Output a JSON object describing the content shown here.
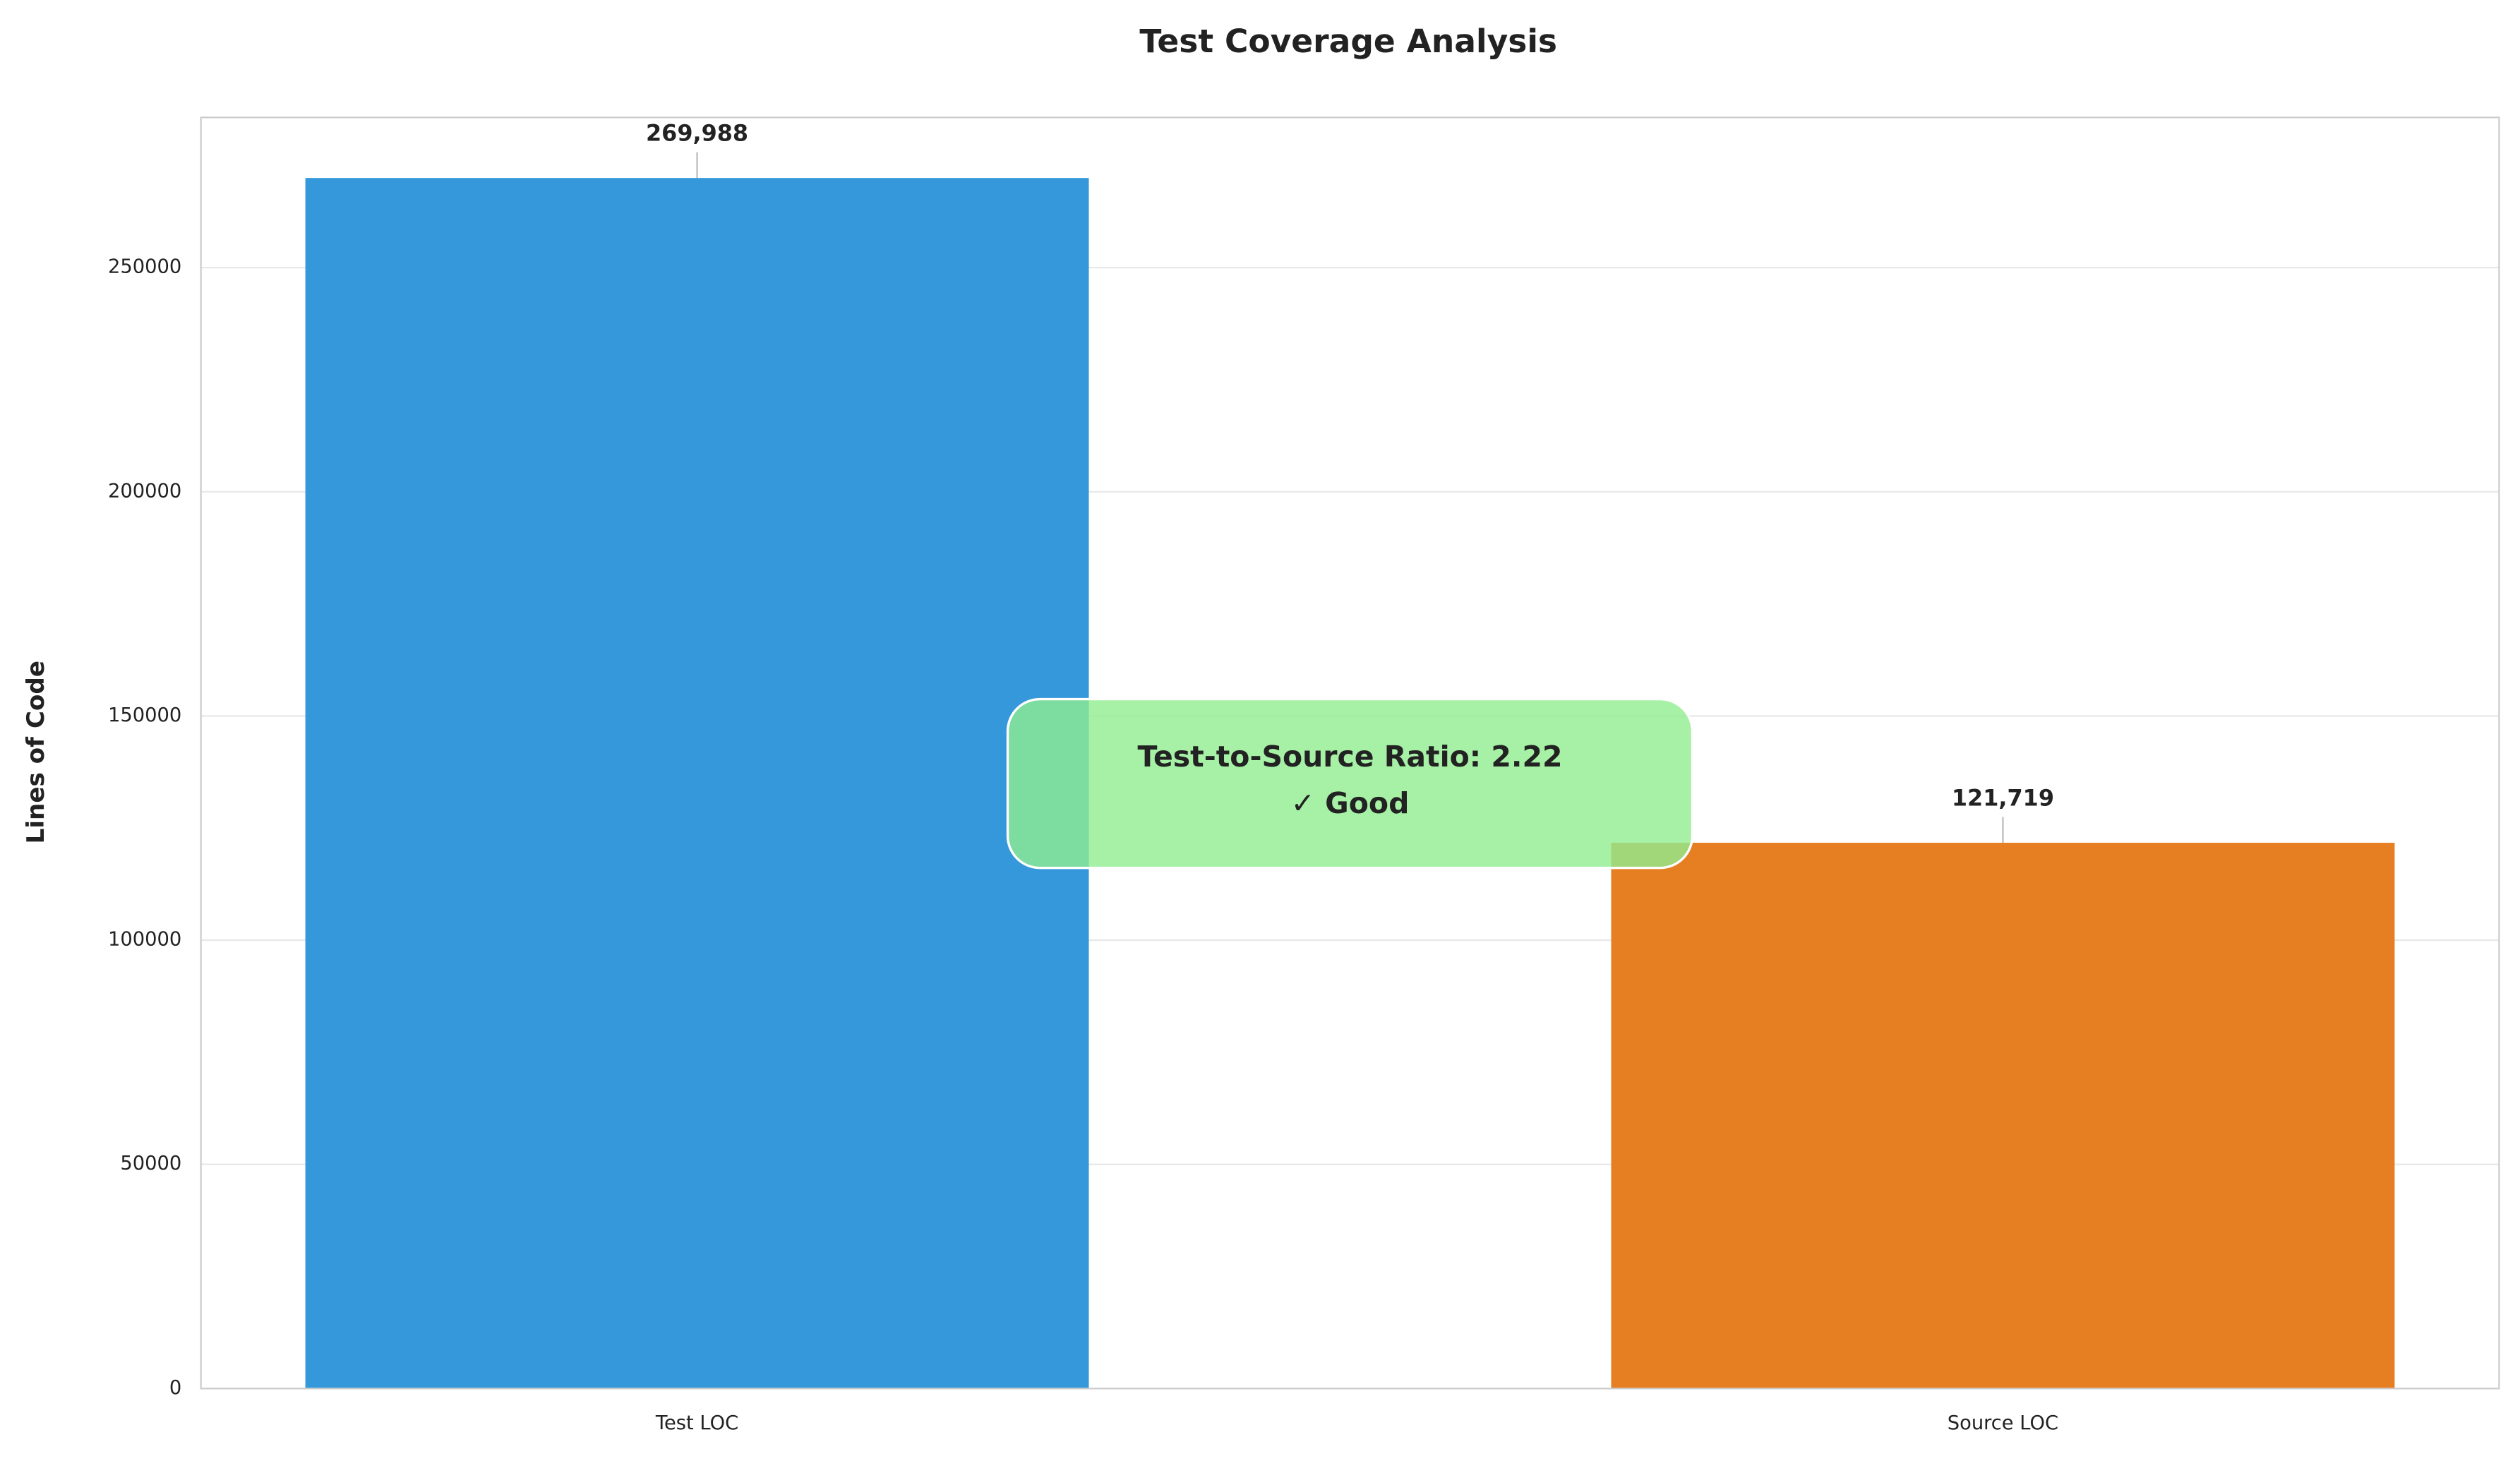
{
  "chart_data": {
    "type": "bar",
    "title": "Test Coverage Analysis",
    "y_label": "Lines of Code",
    "categories": [
      "Test LOC",
      "Source LOC"
    ],
    "values": [
      269988,
      121719
    ],
    "value_labels": [
      "269,988",
      "121,719"
    ],
    "colors": [
      "#3498db",
      "#e67e22"
    ],
    "ylim": [
      0,
      283487
    ],
    "yticks": [
      0,
      50000,
      100000,
      150000,
      200000,
      250000
    ],
    "grid": true,
    "annotation": [
      "Test-to-Source Ratio: 2.22",
      "✓ Good"
    ]
  }
}
